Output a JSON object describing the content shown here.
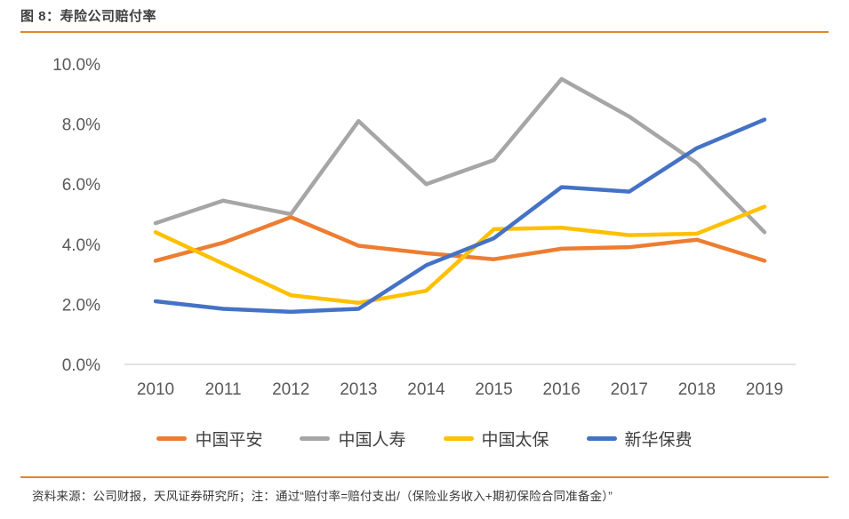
{
  "header": {
    "title": "图 8：寿险公司赔付率"
  },
  "footer": {
    "note": "资料来源：公司财报，天风证券研究所；注：通过“赔付率=赔付支出/（保险业务收入+期初保险合同准备金）”"
  },
  "chart_data": {
    "type": "line",
    "title": "寿险公司赔付率",
    "categories": [
      "2010",
      "2011",
      "2012",
      "2013",
      "2014",
      "2015",
      "2016",
      "2017",
      "2018",
      "2019"
    ],
    "series": [
      {
        "name": "中国平安",
        "color": "#ED7D31",
        "values": [
          3.45,
          4.05,
          4.9,
          3.95,
          3.7,
          3.5,
          3.85,
          3.9,
          4.15,
          3.45
        ]
      },
      {
        "name": "中国人寿",
        "color": "#A6A6A6",
        "values": [
          4.7,
          5.45,
          5.0,
          8.1,
          6.0,
          6.8,
          9.5,
          8.25,
          6.7,
          4.4
        ]
      },
      {
        "name": "中国太保",
        "color": "#FFC000",
        "values": [
          4.4,
          3.35,
          2.3,
          2.05,
          2.45,
          4.5,
          4.55,
          4.3,
          4.35,
          5.25
        ]
      },
      {
        "name": "新华保费",
        "color": "#4472C4",
        "values": [
          2.1,
          1.85,
          1.75,
          1.85,
          3.3,
          4.2,
          5.9,
          5.75,
          7.2,
          8.15
        ]
      }
    ],
    "ylim": [
      0,
      10
    ],
    "y_ticks": [
      "0.0%",
      "2.0%",
      "4.0%",
      "6.0%",
      "8.0%",
      "10.0%"
    ],
    "xlabel": "",
    "ylabel": "",
    "grid": "baseline-only",
    "legend_position": "bottom",
    "accent_rule_color": "#E0862E",
    "baseline_color": "#D9D9D9",
    "axis_text_color": "#595959"
  }
}
